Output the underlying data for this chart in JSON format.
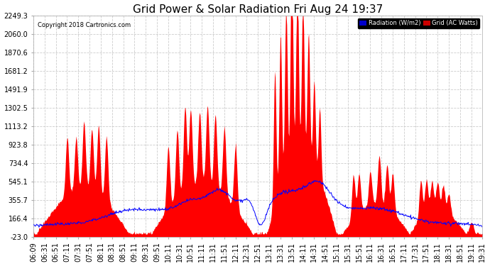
{
  "title": "Grid Power & Solar Radiation Fri Aug 24 19:37",
  "copyright": "Copyright 2018 Cartronics.com",
  "yticks": [
    -23.0,
    166.4,
    355.7,
    545.1,
    734.4,
    923.8,
    1113.2,
    1302.5,
    1491.9,
    1681.2,
    1870.6,
    2060.0,
    2249.3
  ],
  "ylim": [
    -23.0,
    2249.3
  ],
  "xtick_labels": [
    "06:09",
    "06:31",
    "06:51",
    "07:11",
    "07:31",
    "07:51",
    "08:11",
    "08:31",
    "08:51",
    "09:11",
    "09:31",
    "09:51",
    "10:11",
    "10:31",
    "10:51",
    "11:11",
    "11:31",
    "11:51",
    "12:11",
    "12:31",
    "12:51",
    "13:11",
    "13:31",
    "13:51",
    "14:11",
    "14:31",
    "14:51",
    "15:11",
    "15:31",
    "15:51",
    "16:11",
    "16:31",
    "16:51",
    "17:11",
    "17:31",
    "17:51",
    "18:11",
    "18:31",
    "18:51",
    "19:11",
    "19:31"
  ],
  "bg_color": "#ffffff",
  "plot_bg_color": "#ffffff",
  "grid_color": "#cccccc",
  "red_fill_color": "#ff0000",
  "blue_line_color": "#0000ff",
  "title_fontsize": 11,
  "tick_fontsize": 7,
  "legend_radiation_color": "#0000cc",
  "legend_grid_color": "#cc0000",
  "n_labels": 41
}
